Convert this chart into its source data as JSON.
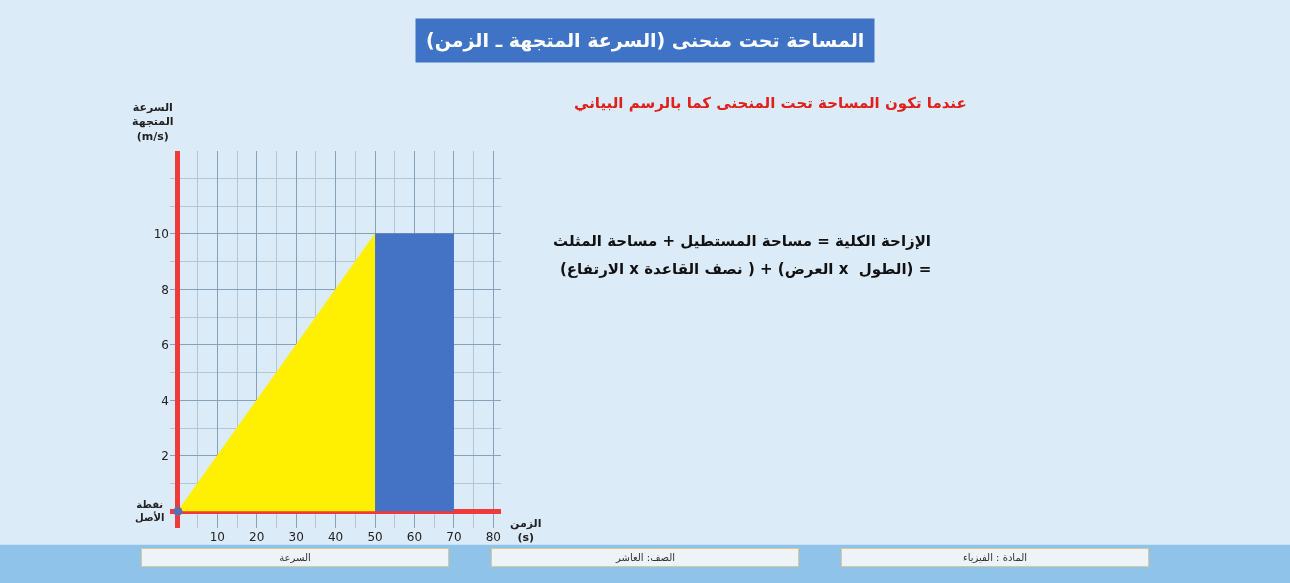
{
  "chart_data": {
    "type": "area",
    "title": "المساحة تحت منحنى (السرعة المتجهة ـ الزمن)",
    "subtitle": "عندما تكون المساحة تحت المنحنى كما بالرسم البياني",
    "xlabel": "الزمن\n(s)",
    "ylabel": "السرعة\nالمتجهة\n(m/s)",
    "series": [
      {
        "color": "#ffef00",
        "x": [
          0,
          50
        ],
        "values": [
          0,
          10
        ]
      },
      {
        "color": "#4472c4",
        "x": [
          50,
          70
        ],
        "values": [
          10,
          10
        ]
      }
    ],
    "xlim": [
      -2,
      82
    ],
    "ylim": [
      -0.6,
      13
    ],
    "xticks": [
      10,
      20,
      30,
      40,
      50,
      60,
      70,
      80
    ],
    "yticks": [
      2,
      4,
      6,
      8,
      10
    ],
    "grid": true,
    "annotations": [
      "الإزاحة الكلية = مساحة المستطيل + مساحة المثلث",
      "= (الطول  x العرض) + ( نصف القاعدة x الارتفاع)",
      {
        "text": "نقطة\nالأصل",
        "x": 0,
        "y": 0
      },
      "المادة : الفيزياء",
      "الصف: العاشر",
      "السرعة"
    ]
  }
}
